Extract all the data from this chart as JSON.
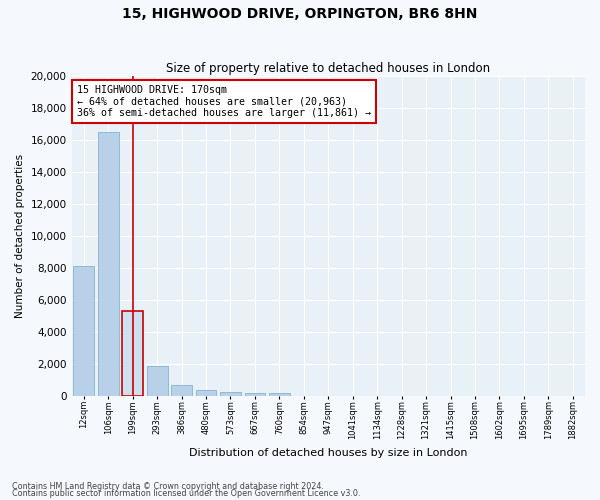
{
  "title1": "15, HIGHWOOD DRIVE, ORPINGTON, BR6 8HN",
  "title2": "Size of property relative to detached houses in London",
  "xlabel": "Distribution of detached houses by size in London",
  "ylabel": "Number of detached properties",
  "categories": [
    "12sqm",
    "106sqm",
    "199sqm",
    "293sqm",
    "386sqm",
    "480sqm",
    "573sqm",
    "667sqm",
    "760sqm",
    "854sqm",
    "947sqm",
    "1041sqm",
    "1134sqm",
    "1228sqm",
    "1321sqm",
    "1415sqm",
    "1508sqm",
    "1602sqm",
    "1695sqm",
    "1789sqm",
    "1882sqm"
  ],
  "values": [
    8100,
    16500,
    5300,
    1850,
    700,
    370,
    270,
    210,
    170,
    0,
    0,
    0,
    0,
    0,
    0,
    0,
    0,
    0,
    0,
    0,
    0
  ],
  "bar_color": "#b8d0e8",
  "bar_edge_color": "#7aaacb",
  "highlight_bar_index": 2,
  "highlight_color": "#cce0f0",
  "highlight_edge_color": "#cc0000",
  "annotation_text": "15 HIGHWOOD DRIVE: 170sqm\n← 64% of detached houses are smaller (20,963)\n36% of semi-detached houses are larger (11,861) →",
  "annotation_box_color": "#ffffff",
  "annotation_border_color": "#cc0000",
  "ylim": [
    0,
    20000
  ],
  "yticks": [
    0,
    2000,
    4000,
    6000,
    8000,
    10000,
    12000,
    14000,
    16000,
    18000,
    20000
  ],
  "footer1": "Contains HM Land Registry data © Crown copyright and database right 2024.",
  "footer2": "Contains public sector information licensed under the Open Government Licence v3.0.",
  "bg_color": "#f5f8fc",
  "plot_bg_color": "#e8f0f8"
}
